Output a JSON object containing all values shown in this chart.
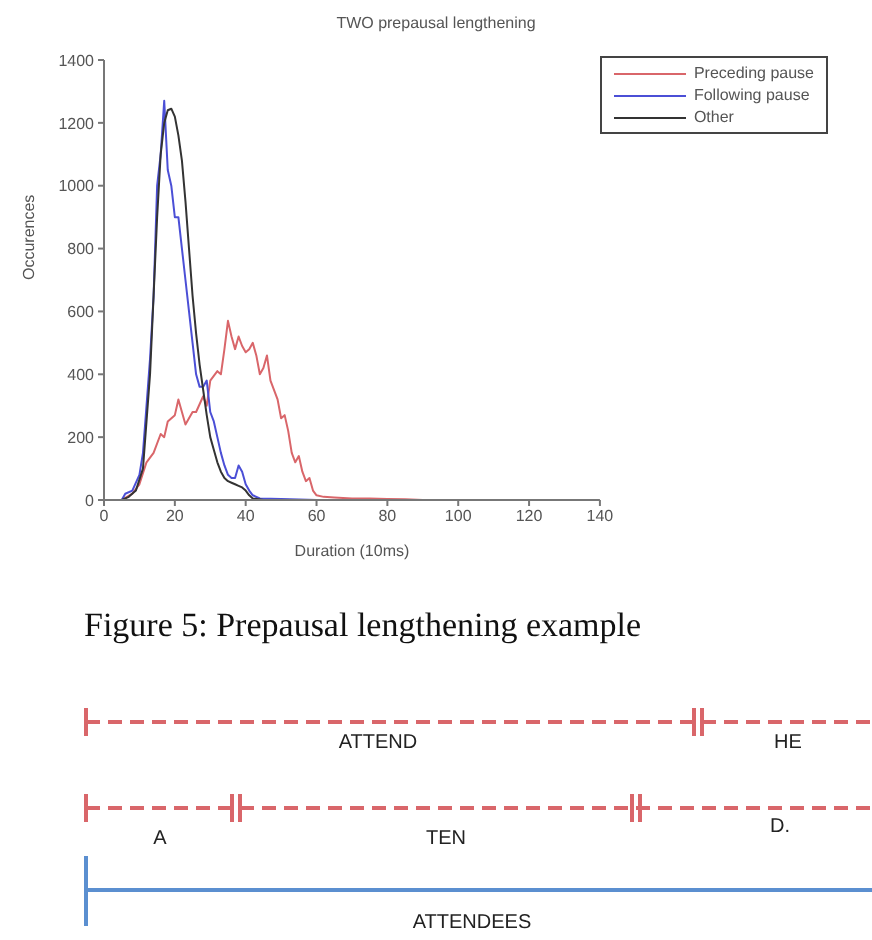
{
  "chart_data": {
    "type": "line",
    "title": "TWO prepausal lengthening",
    "xlabel": "Duration (10ms)",
    "ylabel": "Occurences",
    "xlim": [
      0,
      140
    ],
    "xticks": [
      0,
      20,
      40,
      60,
      80,
      100,
      120,
      140
    ],
    "ylim": [
      0,
      1400
    ],
    "yticks": [
      0,
      200,
      400,
      600,
      800,
      1000,
      1200,
      1400
    ],
    "legend": "top right",
    "grid": false,
    "marker": "none",
    "line_style": "solid",
    "series": [
      {
        "name": "Preceding pause",
        "color": "#d9666a",
        "x": [
          5,
          8,
          10,
          12,
          14,
          16,
          17,
          18,
          20,
          21,
          22,
          23,
          25,
          26,
          28,
          29,
          30,
          32,
          33,
          34,
          35,
          36,
          37,
          38,
          39,
          40,
          41,
          42,
          43,
          44,
          45,
          46,
          47,
          49,
          50,
          51,
          52,
          53,
          54,
          55,
          56,
          57,
          58,
          59,
          60,
          62,
          65,
          70,
          75,
          80,
          85,
          90
        ],
        "values": [
          0,
          20,
          50,
          120,
          150,
          210,
          200,
          250,
          270,
          320,
          280,
          240,
          280,
          280,
          330,
          300,
          380,
          410,
          400,
          480,
          570,
          520,
          480,
          520,
          490,
          470,
          480,
          500,
          460,
          400,
          420,
          460,
          380,
          320,
          260,
          270,
          220,
          150,
          120,
          140,
          90,
          60,
          70,
          30,
          15,
          10,
          8,
          5,
          5,
          3,
          2,
          0
        ]
      },
      {
        "name": "Following pause",
        "color": "#4b4fd6",
        "x": [
          5,
          6,
          8,
          10,
          11,
          12,
          13,
          14,
          15,
          16,
          17,
          18,
          19,
          20,
          21,
          22,
          23,
          24,
          25,
          26,
          27,
          28,
          29,
          30,
          31,
          32,
          33,
          34,
          35,
          36,
          37,
          38,
          39,
          40,
          41,
          42,
          44,
          50,
          60,
          86
        ],
        "values": [
          0,
          20,
          30,
          80,
          150,
          300,
          450,
          650,
          1000,
          1100,
          1270,
          1050,
          1000,
          900,
          900,
          800,
          700,
          600,
          500,
          400,
          360,
          360,
          380,
          280,
          250,
          200,
          150,
          110,
          80,
          70,
          70,
          110,
          90,
          50,
          30,
          15,
          5,
          3,
          0,
          0
        ]
      },
      {
        "name": "Other",
        "color": "#333333",
        "x": [
          5,
          7,
          9,
          11,
          12,
          13,
          14,
          15,
          16,
          17,
          18,
          19,
          20,
          21,
          22,
          23,
          24,
          25,
          26,
          27,
          28,
          29,
          30,
          31,
          32,
          33,
          34,
          35,
          36,
          37,
          38,
          39,
          40,
          41,
          42,
          45,
          60
        ],
        "values": [
          0,
          10,
          30,
          100,
          250,
          400,
          650,
          900,
          1100,
          1200,
          1240,
          1245,
          1220,
          1160,
          1080,
          950,
          800,
          650,
          530,
          430,
          350,
          270,
          200,
          160,
          120,
          90,
          70,
          60,
          55,
          50,
          45,
          40,
          30,
          15,
          5,
          0,
          0
        ]
      }
    ],
    "annotations": [
      "Figure 5: Prepausal lengthening example",
      "ATTEND",
      "HE",
      "A",
      "TEN",
      "D.",
      "ATTENDEES"
    ]
  }
}
